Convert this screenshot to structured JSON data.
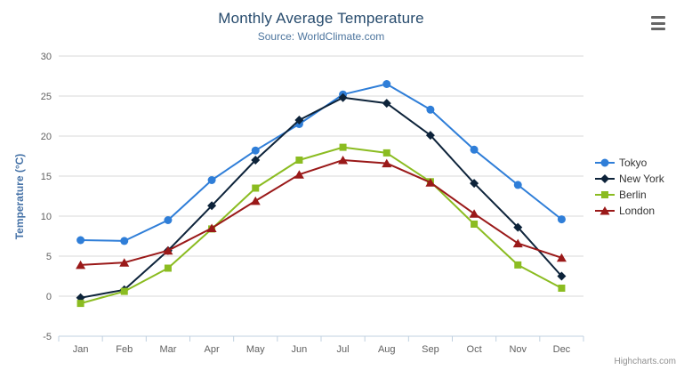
{
  "credits": {
    "label": "Highcharts.com"
  },
  "context_menu": {
    "icon": "hamburger-menu-icon"
  },
  "colors": {
    "title": "#274b6d",
    "subtitle": "#4d759e",
    "yaxis_title": "#4572a7",
    "tick_label": "#606060",
    "grid_line": "#d8d8d8",
    "axis_line": "#c0d0e0",
    "legend_text": "#333333",
    "credits_text": "#909090"
  },
  "chart_data": {
    "type": "line",
    "title": "Monthly Average Temperature",
    "subtitle": "Source: WorldClimate.com",
    "xlabel": "",
    "ylabel": "Temperature (°C)",
    "ylim": [
      -5,
      30
    ],
    "ytick_step": 5,
    "grid": true,
    "legend_position": "right",
    "categories": [
      "Jan",
      "Feb",
      "Mar",
      "Apr",
      "May",
      "Jun",
      "Jul",
      "Aug",
      "Sep",
      "Oct",
      "Nov",
      "Dec"
    ],
    "yticks": [
      -5,
      0,
      5,
      10,
      15,
      20,
      25,
      30
    ],
    "series": [
      {
        "name": "Tokyo",
        "color": "#2f7ed8",
        "marker": "circle",
        "values": [
          7.0,
          6.9,
          9.5,
          14.5,
          18.2,
          21.5,
          25.2,
          26.5,
          23.3,
          18.3,
          13.9,
          9.6
        ]
      },
      {
        "name": "New York",
        "color": "#0d233a",
        "marker": "diamond",
        "values": [
          -0.2,
          0.8,
          5.7,
          11.3,
          17.0,
          22.0,
          24.8,
          24.1,
          20.1,
          14.1,
          8.6,
          2.5
        ]
      },
      {
        "name": "Berlin",
        "color": "#8bbc21",
        "marker": "square",
        "values": [
          -0.9,
          0.6,
          3.5,
          8.4,
          13.5,
          17.0,
          18.6,
          17.9,
          14.3,
          9.0,
          3.9,
          1.0
        ]
      },
      {
        "name": "London",
        "color": "#9a1919",
        "marker": "triangle",
        "values": [
          3.9,
          4.2,
          5.7,
          8.5,
          11.9,
          15.2,
          17.0,
          16.6,
          14.2,
          10.3,
          6.6,
          4.8
        ]
      }
    ]
  }
}
